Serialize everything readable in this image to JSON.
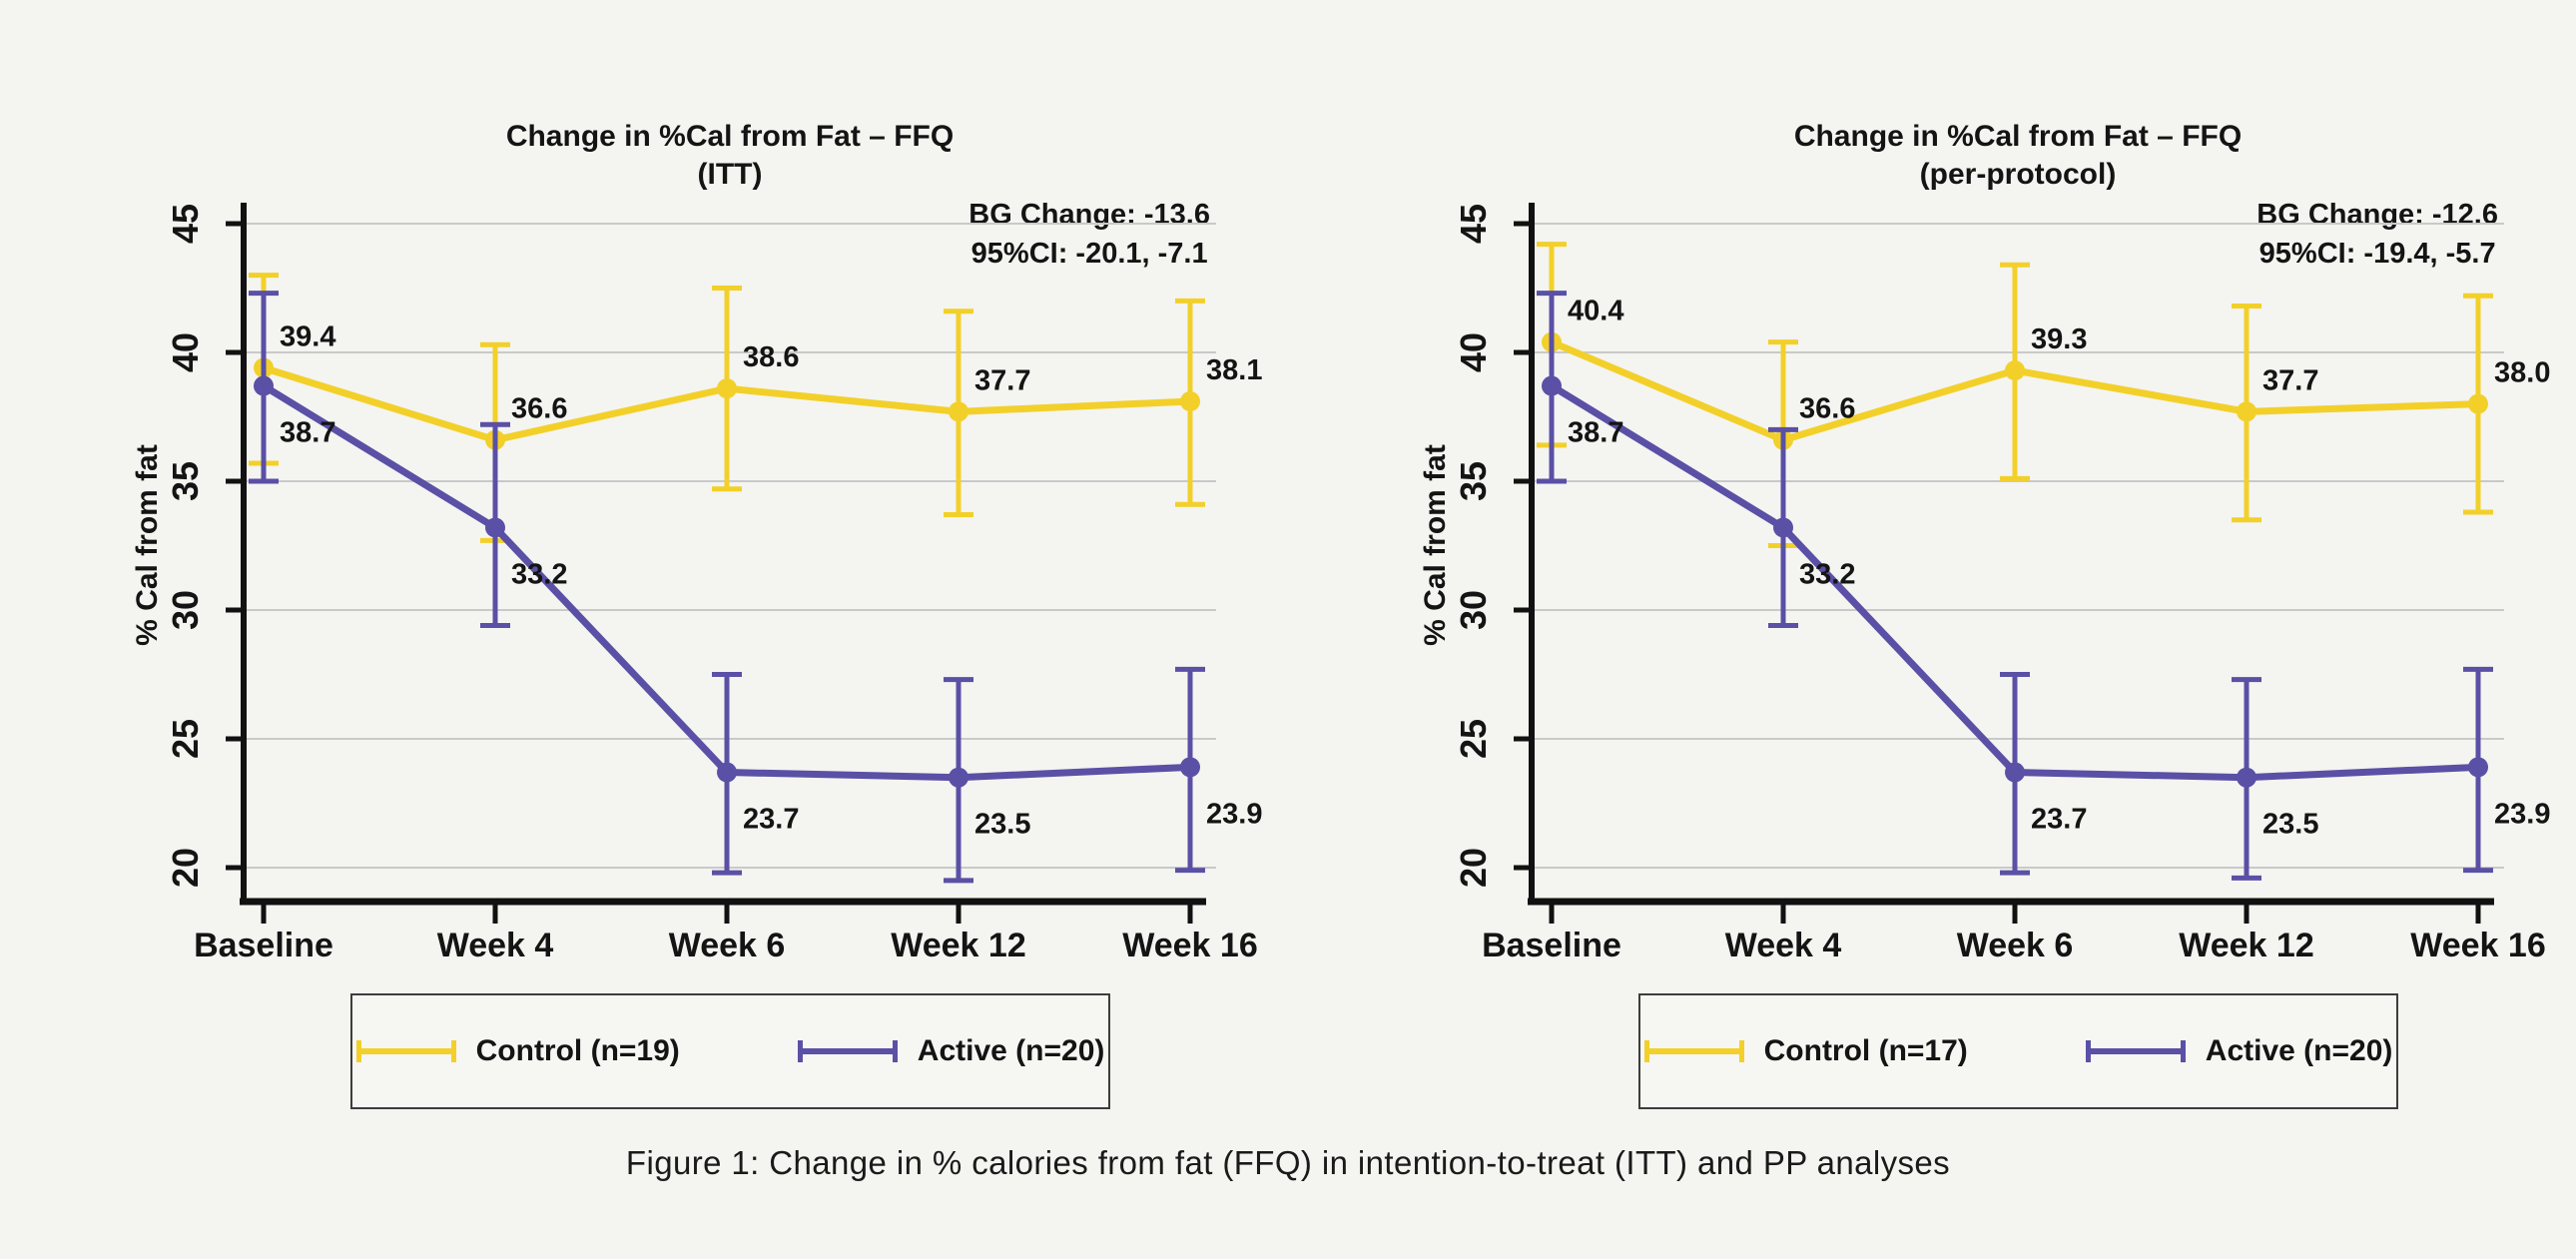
{
  "page": {
    "background": "#f4f4f1",
    "caption": "Figure 1: Change in % calories from fat (FFQ) in intention-to-treat (ITT) and PP analyses"
  },
  "colors": {
    "control": "#f2d029",
    "active": "#5a50a5",
    "gridline": "#c9c9c9",
    "axis": "#111111",
    "text": "#141414"
  },
  "chart_data": [
    {
      "type": "line",
      "title_line1": "Change in %Cal from Fat – FFQ",
      "title_line2": "(ITT)",
      "annotation_line1": "BG Change: -13.6",
      "annotation_line2": "95%CI: -20.1, -7.1",
      "ylabel": "% Cal from fat",
      "categories": [
        "Baseline",
        "Week 4",
        "Week 6",
        "Week 12",
        "Week 16"
      ],
      "y_ticks": [
        45,
        40,
        35,
        30,
        25,
        20
      ],
      "ylim": [
        18.5,
        46.0
      ],
      "grid": true,
      "legend_position": "bottom",
      "series": [
        {
          "name": "Control (n=19)",
          "color_key": "control",
          "values": [
            39.4,
            36.6,
            38.6,
            37.7,
            38.1
          ],
          "ci_low": [
            35.7,
            32.7,
            34.7,
            33.7,
            34.1
          ],
          "ci_high": [
            43.0,
            40.3,
            42.5,
            41.6,
            42.0
          ],
          "label_placement": "above"
        },
        {
          "name": "Active (n=20)",
          "color_key": "active",
          "values": [
            38.7,
            33.2,
            23.7,
            23.5,
            23.9
          ],
          "ci_low": [
            35.0,
            29.4,
            19.8,
            19.5,
            19.9
          ],
          "ci_high": [
            42.3,
            37.2,
            27.5,
            27.3,
            27.7
          ],
          "label_placement": "below"
        }
      ]
    },
    {
      "type": "line",
      "title_line1": "Change in %Cal from Fat – FFQ",
      "title_line2": "(per-protocol)",
      "annotation_line1": "BG Change: -12.6",
      "annotation_line2": "95%CI: -19.4, -5.7",
      "ylabel": "% Cal from fat",
      "categories": [
        "Baseline",
        "Week 4",
        "Week 6",
        "Week 12",
        "Week 16"
      ],
      "y_ticks": [
        45,
        40,
        35,
        30,
        25,
        20
      ],
      "ylim": [
        18.5,
        46.0
      ],
      "grid": true,
      "legend_position": "bottom",
      "series": [
        {
          "name": "Control (n=17)",
          "color_key": "control",
          "values": [
            40.4,
            36.6,
            39.3,
            37.7,
            38.0
          ],
          "ci_low": [
            36.4,
            32.5,
            35.1,
            33.5,
            33.8
          ],
          "ci_high": [
            44.2,
            40.4,
            43.4,
            41.8,
            42.2
          ],
          "label_placement": "above"
        },
        {
          "name": "Active (n=20)",
          "color_key": "active",
          "values": [
            38.7,
            33.2,
            23.7,
            23.5,
            23.9
          ],
          "ci_low": [
            35.0,
            29.4,
            19.8,
            19.6,
            19.9
          ],
          "ci_high": [
            42.3,
            37.0,
            27.5,
            27.3,
            27.7
          ],
          "label_placement": "below"
        }
      ]
    }
  ]
}
